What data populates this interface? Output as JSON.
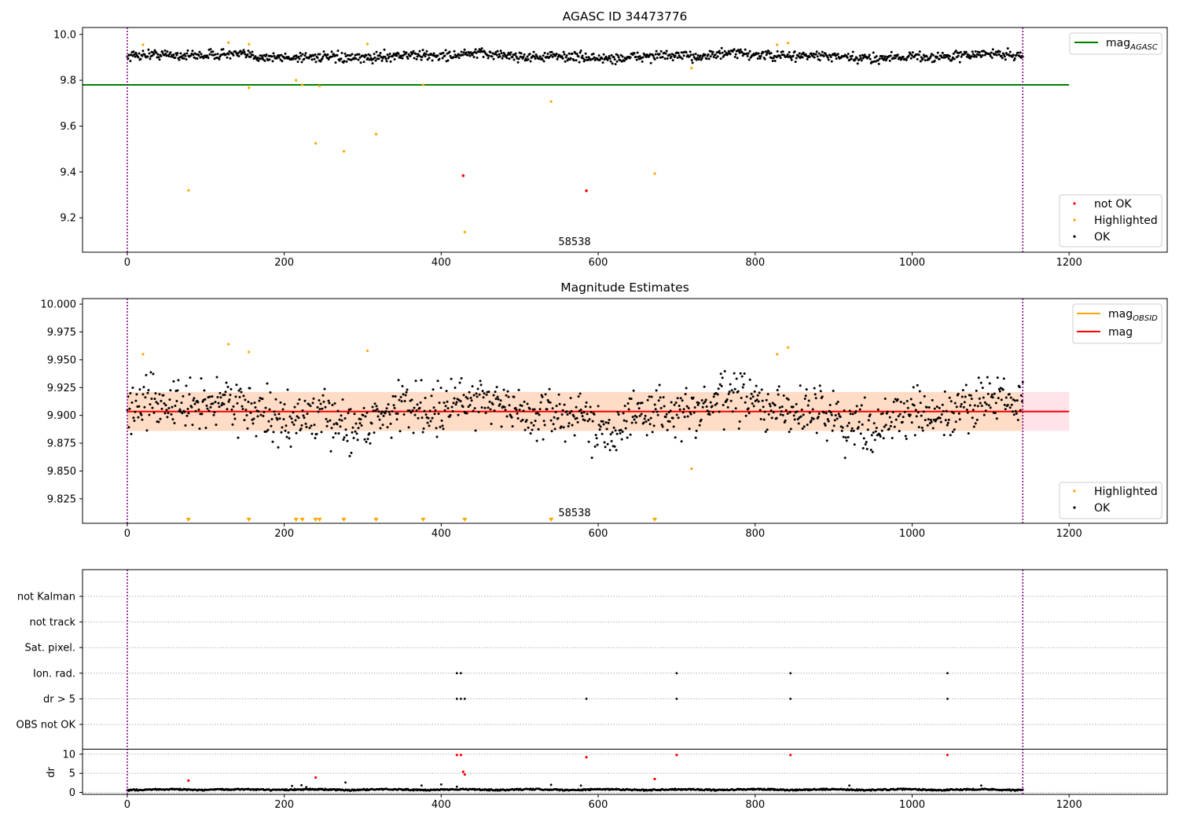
{
  "chart_data": [
    {
      "type": "scatter",
      "title": "AGASC ID 34473776",
      "xlim": [
        -57,
        1325
      ],
      "ylim": [
        9.05,
        10.03
      ],
      "x_ticks": [
        0,
        200,
        400,
        600,
        800,
        1000,
        1200
      ],
      "y_ticks": [
        9.2,
        9.4,
        9.6,
        9.8,
        10.0
      ],
      "y_tick_labels": [
        "9.2",
        "9.4",
        "9.6",
        "9.8",
        "10.0"
      ],
      "x_tick_labels": [
        "0",
        "200",
        "400",
        "600",
        "800",
        "1000",
        "1200"
      ],
      "obsid_label": {
        "text": "58538",
        "x": 570
      },
      "boundaries": [
        0,
        1141
      ],
      "reference_line": {
        "label_main": "mag",
        "label_sub": "AGASC",
        "y": 9.78,
        "x_range": [
          -57,
          1200
        ],
        "color": "#008000"
      },
      "legend_lines": [
        {
          "main": "mag",
          "sub": "AGASC",
          "color": "#008000"
        }
      ],
      "legend_points": [
        {
          "label": "not OK",
          "color": "#ff0000"
        },
        {
          "label": "Highlighted",
          "color": "#ffa500"
        },
        {
          "label": "OK",
          "color": "#000000"
        }
      ],
      "ok_series": {
        "name": "OK",
        "x_range": [
          0,
          1141
        ],
        "n": 1140,
        "mean": 9.905,
        "noise": 0.018
      },
      "highlighted": [
        [
          20,
          9.955
        ],
        [
          129,
          9.964
        ],
        [
          155,
          9.957
        ],
        [
          155,
          9.767
        ],
        [
          215,
          9.8
        ],
        [
          223,
          9.78
        ],
        [
          240,
          9.525
        ],
        [
          245,
          9.775
        ],
        [
          276,
          9.49
        ],
        [
          306,
          9.958
        ],
        [
          317,
          9.565
        ],
        [
          377,
          9.78
        ],
        [
          430,
          9.138
        ],
        [
          540,
          9.707
        ],
        [
          672,
          9.393
        ],
        [
          719,
          9.853
        ],
        [
          828,
          9.955
        ],
        [
          842,
          9.962
        ],
        [
          78,
          9.32
        ]
      ],
      "not_ok": [
        [
          428,
          9.384
        ],
        [
          585,
          9.318
        ]
      ]
    },
    {
      "type": "scatter",
      "title": "Magnitude Estimates",
      "xlim": [
        -57,
        1325
      ],
      "ylim": [
        9.803,
        10.005
      ],
      "x_ticks": [
        0,
        200,
        400,
        600,
        800,
        1000,
        1200
      ],
      "y_ticks": [
        9.825,
        9.85,
        9.875,
        9.9,
        9.925,
        9.95,
        9.975,
        10.0
      ],
      "y_tick_labels": [
        "9.825",
        "9.850",
        "9.875",
        "9.900",
        "9.925",
        "9.950",
        "9.975",
        "10.000"
      ],
      "x_tick_labels": [
        "0",
        "200",
        "400",
        "600",
        "800",
        "1000",
        "1200"
      ],
      "obsid_label": {
        "text": "58538",
        "x": 570
      },
      "boundaries": [
        0,
        1141
      ],
      "mag_line": {
        "y": 9.9035,
        "color": "#ff0000"
      },
      "obsid_band": {
        "y0": 9.886,
        "y1": 9.921,
        "x_range": [
          0,
          1141
        ],
        "color": "#ffdab9"
      },
      "mag_band": {
        "y0": 9.886,
        "y1": 9.921,
        "x_range": [
          0,
          1200
        ],
        "color": "#ffc0cb"
      },
      "legend_lines": [
        {
          "main": "mag",
          "sub": "OBSID",
          "color": "#ffa500"
        },
        {
          "main": "mag",
          "sub": "",
          "color": "#ff0000"
        }
      ],
      "legend_points": [
        {
          "label": "Highlighted",
          "color": "#ffa500"
        },
        {
          "label": "OK",
          "color": "#000000"
        }
      ],
      "ok_series": {
        "name": "OK",
        "x_range": [
          0,
          1141
        ],
        "n": 1140,
        "mean": 9.903,
        "noise": 0.017
      },
      "highlighted": [
        [
          20,
          9.955
        ],
        [
          129,
          9.964
        ],
        [
          155,
          9.957
        ],
        [
          306,
          9.958
        ],
        [
          719,
          9.852
        ],
        [
          828,
          9.955
        ],
        [
          842,
          9.961
        ]
      ],
      "off_scale_markers": [
        78,
        155,
        215,
        223,
        240,
        245,
        276,
        317,
        377,
        430,
        540,
        672
      ]
    },
    {
      "type": "scatter",
      "title": "",
      "xlim": [
        -57,
        1325
      ],
      "x_ticks": [
        0,
        200,
        400,
        600,
        800,
        1000,
        1200
      ],
      "x_tick_labels": [
        "0",
        "200",
        "400",
        "600",
        "800",
        "1000",
        "1200"
      ],
      "boundaries": [
        0,
        1141
      ],
      "flag_rows": [
        "not Kalman",
        "not track",
        "Sat. pixel.",
        "Ion. rad.",
        "dr > 5",
        "OBS not OK"
      ],
      "flags": {
        "Ion. rad.": [
          420,
          425,
          700,
          845,
          1045
        ],
        "dr > 5": [
          420,
          425,
          430,
          585,
          700,
          845,
          1045
        ]
      },
      "dr_ylabel": "dr",
      "dr_ylim": [
        -0.5,
        11
      ],
      "dr_ticks": [
        0,
        5,
        10
      ],
      "dr_tick_labels": [
        "0",
        "5",
        "10"
      ],
      "dr_high": [
        [
          78,
          3.1
        ],
        [
          240,
          3.9
        ],
        [
          420,
          9.8
        ],
        [
          425,
          9.8
        ],
        [
          428,
          5.4
        ],
        [
          430,
          4.7
        ],
        [
          585,
          9.2
        ],
        [
          672,
          3.5
        ],
        [
          700,
          9.8
        ],
        [
          845,
          9.8
        ],
        [
          1045,
          9.8
        ]
      ],
      "dr_series": {
        "x_range": [
          0,
          1141
        ],
        "n": 1140,
        "base": 0.4
      }
    }
  ]
}
